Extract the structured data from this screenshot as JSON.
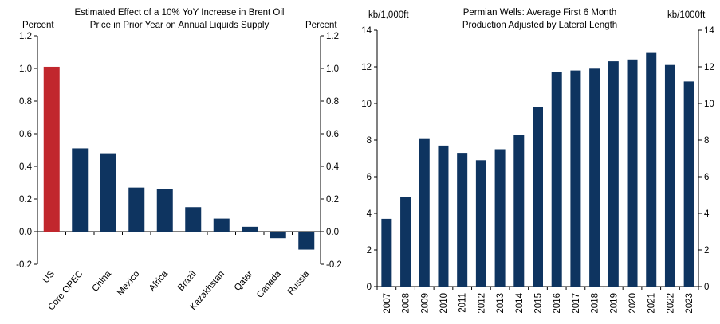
{
  "chart_data": [
    {
      "type": "bar",
      "title": "Estimated Effect of a 10% YoY Increase in Brent Oil Price in Prior Year on Annual Liquids Supply",
      "title_lines": [
        "Estimated Effect of a 10% YoY Increase in Brent Oil",
        "Price in Prior Year on Annual Liquids Supply"
      ],
      "ylabel_left": "Percent",
      "ylabel_right": "Percent",
      "ylim": [
        -0.2,
        1.2
      ],
      "yticks": [
        -0.2,
        0.0,
        0.2,
        0.4,
        0.6,
        0.8,
        1.0,
        1.2
      ],
      "ytick_labels": [
        "-0.2",
        "0.0",
        "0.2",
        "0.4",
        "0.6",
        "0.8",
        "1.0",
        "1.2"
      ],
      "categories": [
        "US",
        "Core OPEC",
        "China",
        "Mexico",
        "Africa",
        "Brazil",
        "Kazakhstan",
        "Qatar",
        "Canada",
        "Russia"
      ],
      "values": [
        1.01,
        0.51,
        0.48,
        0.27,
        0.26,
        0.15,
        0.08,
        0.03,
        -0.04,
        -0.11
      ],
      "highlight_index": 0,
      "colors": {
        "bar": "#0e3460",
        "highlight": "#c1272d"
      }
    },
    {
      "type": "bar",
      "title": "Permian Wells: Average First 6 Month Production Adjusted by Lateral Length",
      "title_lines": [
        "Permian Wells: Average First 6 Month",
        "Production Adjusted by Lateral Length"
      ],
      "ylabel_left": "kb/1,000ft",
      "ylabel_right": "kb/1000ft",
      "ylim": [
        0,
        14
      ],
      "yticks": [
        0,
        2,
        4,
        6,
        8,
        10,
        12,
        14
      ],
      "ytick_labels": [
        "0",
        "2",
        "4",
        "6",
        "8",
        "10",
        "12",
        "14"
      ],
      "categories": [
        "2007",
        "2008",
        "2009",
        "2010",
        "2011",
        "2012",
        "2013",
        "2014",
        "2015",
        "2016",
        "2017",
        "2018",
        "2019",
        "2020",
        "2021",
        "2022",
        "2023"
      ],
      "values": [
        3.7,
        4.9,
        8.1,
        7.7,
        7.3,
        6.9,
        7.5,
        8.3,
        9.8,
        11.7,
        11.8,
        11.9,
        12.3,
        12.4,
        12.8,
        12.1,
        11.2
      ],
      "colors": {
        "bar": "#0e3460"
      }
    }
  ]
}
